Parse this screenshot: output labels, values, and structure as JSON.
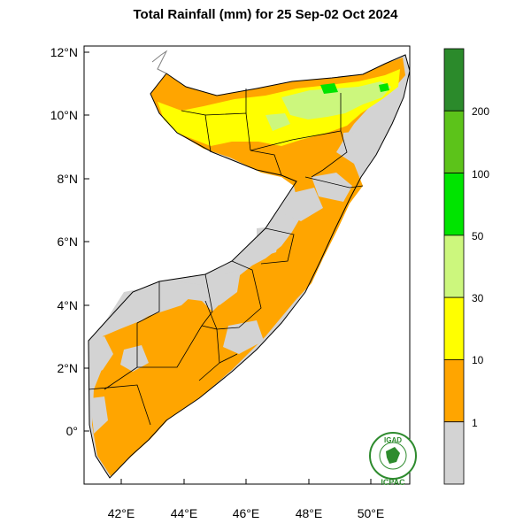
{
  "title": "Total Rainfall (mm) for 25 Sep-02 Oct 2024",
  "y_ticks": [
    "12°N",
    "10°N",
    "8°N",
    "6°N",
    "4°N",
    "2°N",
    "0°"
  ],
  "x_ticks": [
    "42°E",
    "44°E",
    "46°E",
    "48°E",
    "50°E"
  ],
  "colorbar": {
    "boundaries": [
      "200",
      "100",
      "50",
      "30",
      "10",
      "1"
    ],
    "colors": [
      "#2b8a2b",
      "#5cc31a",
      "#00e400",
      "#ccf77d",
      "#ffff00",
      "#ffa500",
      "#d3d3d3"
    ]
  },
  "logo": {
    "top_text": "IGAD",
    "bottom_text": "ICPAC"
  },
  "map": {
    "region": "Somalia",
    "lon_range": [
      41,
      51.5
    ],
    "lat_range": [
      -1.5,
      12.2
    ],
    "background_color": "#ffffff",
    "border_color": "#000000",
    "categories": {
      "dry": "#d3d3d3",
      "light": "#ffa500",
      "moderate": "#ffff00",
      "heavy": "#ccf77d",
      "very_heavy": "#00e400"
    }
  }
}
